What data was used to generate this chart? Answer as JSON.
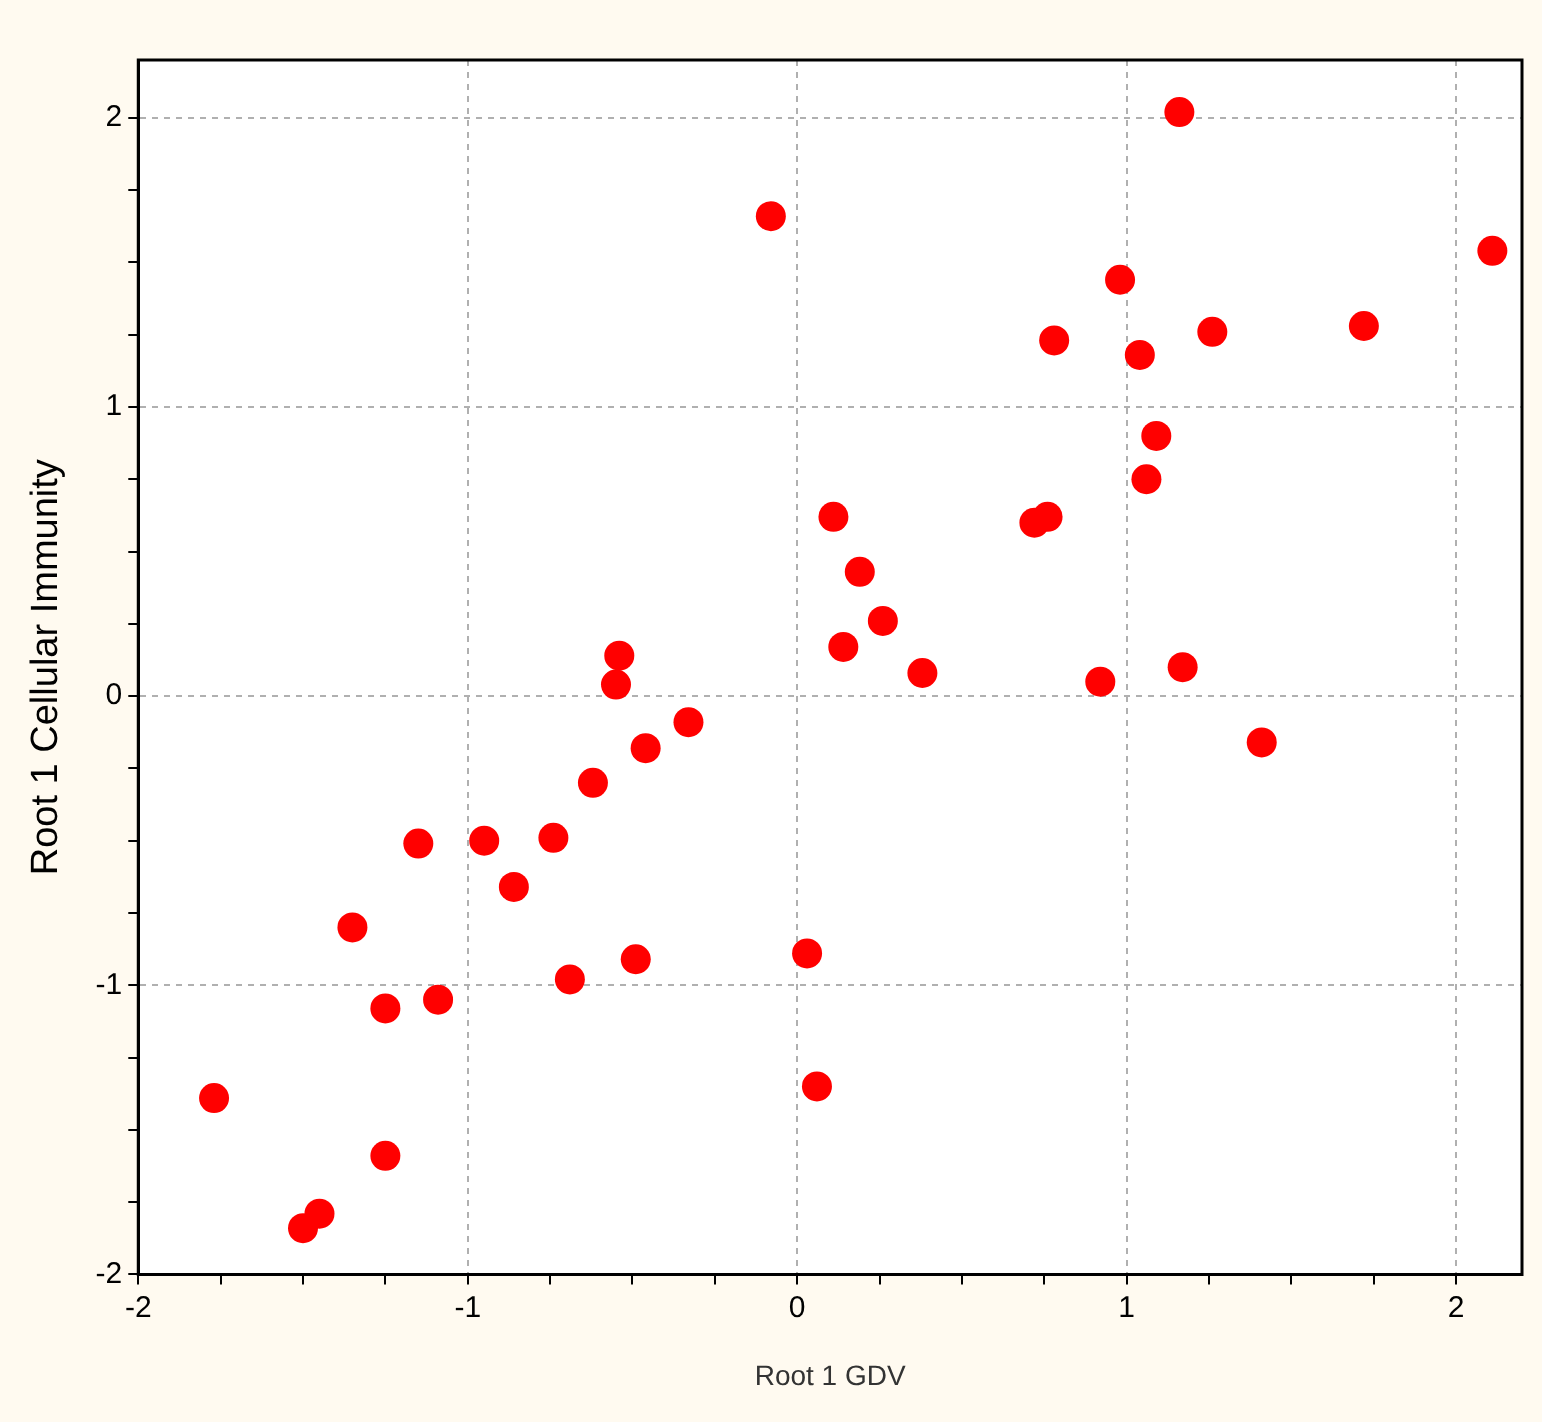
{
  "chart_data": {
    "type": "scatter",
    "xlabel": "Root 1 GDV",
    "ylabel": "Root 1 Cellular Immunity",
    "xlim": [
      -2,
      2.2
    ],
    "ylim": [
      -2,
      2.2
    ],
    "xticks": [
      -2,
      {
        "value": -1.75,
        "label": null
      },
      {
        "value": -1.5,
        "label": null
      },
      {
        "value": -1.25,
        "label": null
      },
      -1,
      {
        "value": -0.75,
        "label": null
      },
      {
        "value": -0.5,
        "label": null
      },
      {
        "value": -0.25,
        "label": null
      },
      0,
      {
        "value": 0.25,
        "label": null
      },
      {
        "value": 0.5,
        "label": null
      },
      {
        "value": 0.75,
        "label": null
      },
      1,
      {
        "value": 1.25,
        "label": null
      },
      {
        "value": 1.5,
        "label": null
      },
      {
        "value": 1.75,
        "label": null
      },
      2
    ],
    "yticks": [
      -2,
      {
        "value": -1.75,
        "label": null
      },
      {
        "value": -1.5,
        "label": null
      },
      {
        "value": -1.25,
        "label": null
      },
      -1,
      {
        "value": -0.75,
        "label": null
      },
      {
        "value": -0.5,
        "label": null
      },
      {
        "value": -0.25,
        "label": null
      },
      0,
      {
        "value": 0.25,
        "label": null
      },
      {
        "value": 0.5,
        "label": null
      },
      {
        "value": 0.75,
        "label": null
      },
      1,
      {
        "value": 1.25,
        "label": null
      },
      {
        "value": 1.5,
        "label": null
      },
      {
        "value": 1.75,
        "label": null
      },
      2
    ],
    "grid": true,
    "marker": "circle",
    "series": [
      {
        "color": "#ff0000",
        "x": [
          -0.08,
          -0.54,
          1.16,
          2.11,
          0.98,
          0.78,
          1.04,
          1.26,
          1.72,
          1.09,
          1.06,
          0.11,
          0.72,
          0.76,
          0.19,
          0.26,
          0.14,
          0.38,
          0.92,
          1.17,
          1.41,
          0.03,
          0.06,
          -0.55,
          -0.33,
          -0.46,
          -0.62,
          -0.74,
          -0.95,
          -1.15,
          -0.86,
          -1.35,
          -0.49,
          -0.69,
          -1.09,
          -1.25,
          -1.77,
          -1.25,
          -1.45,
          -1.5
        ],
        "values": [
          1.66,
          0.14,
          2.02,
          1.54,
          1.44,
          1.23,
          1.18,
          1.26,
          1.28,
          0.9,
          0.75,
          0.62,
          0.6,
          0.62,
          0.43,
          0.26,
          0.17,
          0.08,
          0.05,
          0.1,
          -0.16,
          -0.89,
          -1.35,
          0.04,
          -0.09,
          -0.18,
          -0.3,
          -0.49,
          -0.5,
          -0.51,
          -0.66,
          -0.8,
          -0.91,
          -0.98,
          -1.05,
          -1.08,
          -1.39,
          -1.59,
          -1.79,
          -1.84
        ]
      }
    ]
  }
}
